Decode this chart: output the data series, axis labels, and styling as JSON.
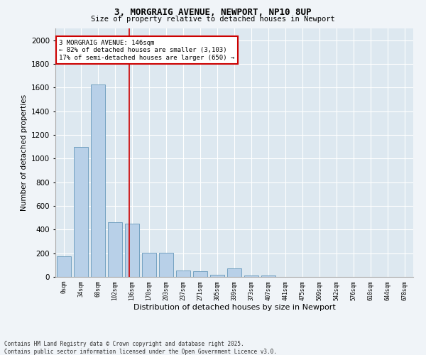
{
  "title_line1": "3, MORGRAIG AVENUE, NEWPORT, NP10 8UP",
  "title_line2": "Size of property relative to detached houses in Newport",
  "xlabel": "Distribution of detached houses by size in Newport",
  "ylabel": "Number of detached properties",
  "bar_color": "#b8d0e8",
  "bar_edge_color": "#6699bb",
  "background_color": "#dde8f0",
  "grid_color": "#ffffff",
  "categories": [
    "0sqm",
    "34sqm",
    "68sqm",
    "102sqm",
    "136sqm",
    "170sqm",
    "203sqm",
    "237sqm",
    "271sqm",
    "305sqm",
    "339sqm",
    "373sqm",
    "407sqm",
    "441sqm",
    "475sqm",
    "509sqm",
    "542sqm",
    "576sqm",
    "610sqm",
    "644sqm",
    "678sqm"
  ],
  "values": [
    175,
    1100,
    1625,
    460,
    450,
    205,
    205,
    55,
    50,
    20,
    75,
    10,
    10,
    3,
    3,
    2,
    1,
    1,
    1,
    1,
    1
  ],
  "ylim": [
    0,
    2100
  ],
  "yticks": [
    0,
    200,
    400,
    600,
    800,
    1000,
    1200,
    1400,
    1600,
    1800,
    2000
  ],
  "vline_x": 3.82,
  "annotation_text": "3 MORGRAIG AVENUE: 146sqm\n← 82% of detached houses are smaller (3,103)\n17% of semi-detached houses are larger (650) →",
  "annotation_box_color": "#ffffff",
  "annotation_box_edge_color": "#cc0000",
  "vline_color": "#cc0000",
  "footer_line1": "Contains HM Land Registry data © Crown copyright and database right 2025.",
  "footer_line2": "Contains public sector information licensed under the Open Government Licence v3.0."
}
